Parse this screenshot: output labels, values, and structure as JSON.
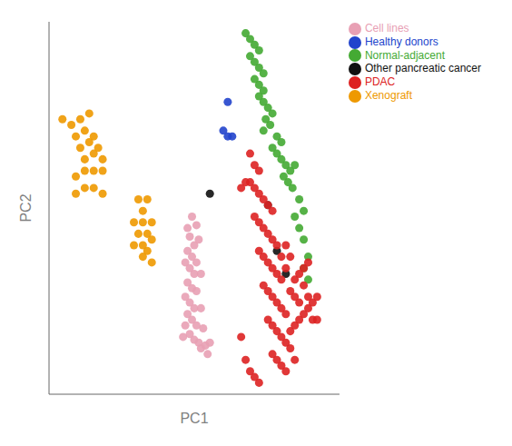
{
  "chart_data": {
    "type": "scatter",
    "title": "",
    "xlabel": "PC1",
    "ylabel": "PC2",
    "xlim": [
      -0.5,
      0.8
    ],
    "ylim": [
      -0.4,
      0.9
    ],
    "tick_labels": false,
    "grid": false,
    "legend": "upper right",
    "series": [
      {
        "name": "Cell lines",
        "color": "#e8a0b4",
        "values": [
          [
            0.12,
            0.18
          ],
          [
            0.14,
            0.22
          ],
          [
            0.16,
            0.19
          ],
          [
            0.13,
            0.15
          ],
          [
            0.15,
            0.12
          ],
          [
            0.17,
            0.14
          ],
          [
            0.12,
            0.1
          ],
          [
            0.14,
            0.08
          ],
          [
            0.16,
            0.06
          ],
          [
            0.11,
            0.06
          ],
          [
            0.13,
            0.04
          ],
          [
            0.15,
            0.02
          ],
          [
            0.18,
            0.02
          ],
          [
            0.12,
            -0.01
          ],
          [
            0.14,
            -0.03
          ],
          [
            0.16,
            -0.04
          ],
          [
            0.11,
            -0.06
          ],
          [
            0.13,
            -0.08
          ],
          [
            0.15,
            -0.1
          ],
          [
            0.18,
            -0.1
          ],
          [
            0.12,
            -0.12
          ],
          [
            0.14,
            -0.14
          ],
          [
            0.16,
            -0.16
          ],
          [
            0.11,
            -0.16
          ],
          [
            0.19,
            -0.17
          ],
          [
            0.13,
            -0.19
          ],
          [
            0.15,
            -0.21
          ],
          [
            0.17,
            -0.22
          ],
          [
            0.2,
            -0.23
          ],
          [
            0.1,
            -0.2
          ],
          [
            0.22,
            -0.22
          ],
          [
            0.18,
            -0.24
          ],
          [
            0.21,
            -0.26
          ]
        ]
      },
      {
        "name": "Healthy donors",
        "color": "#2244cc",
        "values": [
          [
            0.3,
            0.62
          ],
          [
            0.28,
            0.52
          ],
          [
            0.3,
            0.5
          ],
          [
            0.32,
            0.5
          ]
        ]
      },
      {
        "name": "Normal-adjacent",
        "color": "#44aa33",
        "values": [
          [
            0.38,
            0.86
          ],
          [
            0.4,
            0.84
          ],
          [
            0.42,
            0.82
          ],
          [
            0.44,
            0.8
          ],
          [
            0.4,
            0.78
          ],
          [
            0.42,
            0.76
          ],
          [
            0.44,
            0.74
          ],
          [
            0.46,
            0.72
          ],
          [
            0.42,
            0.7
          ],
          [
            0.44,
            0.68
          ],
          [
            0.46,
            0.66
          ],
          [
            0.44,
            0.64
          ],
          [
            0.46,
            0.62
          ],
          [
            0.48,
            0.6
          ],
          [
            0.5,
            0.58
          ],
          [
            0.47,
            0.56
          ],
          [
            0.49,
            0.54
          ],
          [
            0.46,
            0.52
          ],
          [
            0.52,
            0.5
          ],
          [
            0.54,
            0.48
          ],
          [
            0.5,
            0.46
          ],
          [
            0.52,
            0.44
          ],
          [
            0.54,
            0.42
          ],
          [
            0.56,
            0.4
          ],
          [
            0.58,
            0.38
          ],
          [
            0.55,
            0.36
          ],
          [
            0.57,
            0.34
          ],
          [
            0.59,
            0.32
          ],
          [
            0.62,
            0.28
          ],
          [
            0.64,
            0.24
          ],
          [
            0.6,
            0.22
          ],
          [
            0.62,
            0.18
          ],
          [
            0.64,
            0.14
          ],
          [
            0.66,
            0.08
          ],
          [
            0.64,
            0.04
          ],
          [
            0.66,
            0.0
          ],
          [
            0.6,
            0.4
          ]
        ]
      },
      {
        "name": "Other pancreatic cancer",
        "color": "#111111",
        "values": [
          [
            0.22,
            0.3
          ],
          [
            0.48,
            0.26
          ],
          [
            0.52,
            0.1
          ],
          [
            0.56,
            0.02
          ]
        ]
      },
      {
        "name": "PDAC",
        "color": "#dd2222",
        "values": [
          [
            0.4,
            0.44
          ],
          [
            0.42,
            0.4
          ],
          [
            0.44,
            0.38
          ],
          [
            0.4,
            0.34
          ],
          [
            0.42,
            0.32
          ],
          [
            0.44,
            0.3
          ],
          [
            0.46,
            0.28
          ],
          [
            0.48,
            0.26
          ],
          [
            0.5,
            0.24
          ],
          [
            0.42,
            0.22
          ],
          [
            0.44,
            0.2
          ],
          [
            0.46,
            0.18
          ],
          [
            0.48,
            0.16
          ],
          [
            0.5,
            0.14
          ],
          [
            0.52,
            0.12
          ],
          [
            0.44,
            0.1
          ],
          [
            0.46,
            0.08
          ],
          [
            0.48,
            0.06
          ],
          [
            0.5,
            0.04
          ],
          [
            0.52,
            0.02
          ],
          [
            0.54,
            0.0
          ],
          [
            0.46,
            -0.02
          ],
          [
            0.48,
            -0.04
          ],
          [
            0.5,
            -0.06
          ],
          [
            0.52,
            -0.08
          ],
          [
            0.54,
            -0.1
          ],
          [
            0.56,
            -0.12
          ],
          [
            0.48,
            -0.14
          ],
          [
            0.5,
            -0.16
          ],
          [
            0.52,
            -0.18
          ],
          [
            0.54,
            -0.2
          ],
          [
            0.56,
            -0.22
          ],
          [
            0.58,
            -0.24
          ],
          [
            0.5,
            -0.26
          ],
          [
            0.52,
            -0.28
          ],
          [
            0.54,
            -0.3
          ],
          [
            0.56,
            -0.32
          ],
          [
            0.6,
            -0.28
          ],
          [
            0.58,
            -0.18
          ],
          [
            0.6,
            -0.16
          ],
          [
            0.62,
            -0.14
          ],
          [
            0.64,
            -0.12
          ],
          [
            0.58,
            -0.04
          ],
          [
            0.6,
            -0.06
          ],
          [
            0.62,
            -0.08
          ],
          [
            0.66,
            -0.06
          ],
          [
            0.64,
            -0.02
          ],
          [
            0.66,
            -0.1
          ],
          [
            0.68,
            -0.08
          ],
          [
            0.7,
            -0.06
          ],
          [
            0.68,
            -0.14
          ],
          [
            0.7,
            -0.14
          ],
          [
            0.6,
            0.0
          ],
          [
            0.62,
            0.02
          ],
          [
            0.64,
            0.04
          ],
          [
            0.66,
            0.06
          ],
          [
            0.56,
            0.04
          ],
          [
            0.54,
            0.08
          ],
          [
            0.56,
            0.12
          ],
          [
            0.58,
            0.08
          ],
          [
            0.36,
            0.32
          ],
          [
            0.38,
            0.34
          ],
          [
            0.4,
            -0.32
          ],
          [
            0.42,
            -0.34
          ],
          [
            0.44,
            -0.36
          ],
          [
            0.38,
            -0.28
          ],
          [
            0.36,
            -0.2
          ]
        ]
      },
      {
        "name": "Xenograft",
        "color": "#ee9900",
        "values": [
          [
            -0.4,
            0.54
          ],
          [
            -0.36,
            0.56
          ],
          [
            -0.32,
            0.58
          ],
          [
            -0.38,
            0.5
          ],
          [
            -0.34,
            0.52
          ],
          [
            -0.3,
            0.5
          ],
          [
            -0.36,
            0.46
          ],
          [
            -0.32,
            0.48
          ],
          [
            -0.28,
            0.46
          ],
          [
            -0.34,
            0.42
          ],
          [
            -0.3,
            0.44
          ],
          [
            -0.26,
            0.42
          ],
          [
            -0.38,
            0.36
          ],
          [
            -0.34,
            0.38
          ],
          [
            -0.3,
            0.38
          ],
          [
            -0.26,
            0.38
          ],
          [
            -0.38,
            0.3
          ],
          [
            -0.34,
            0.32
          ],
          [
            -0.3,
            0.32
          ],
          [
            -0.26,
            0.3
          ],
          [
            -0.44,
            0.56
          ],
          [
            -0.1,
            0.28
          ],
          [
            -0.06,
            0.28
          ],
          [
            -0.08,
            0.24
          ],
          [
            -0.12,
            0.2
          ],
          [
            -0.08,
            0.2
          ],
          [
            -0.04,
            0.2
          ],
          [
            -0.1,
            0.16
          ],
          [
            -0.06,
            0.16
          ],
          [
            -0.04,
            0.14
          ],
          [
            -0.12,
            0.12
          ],
          [
            -0.08,
            0.12
          ],
          [
            -0.06,
            0.1
          ],
          [
            -0.08,
            0.08
          ],
          [
            -0.04,
            0.06
          ]
        ]
      }
    ]
  }
}
